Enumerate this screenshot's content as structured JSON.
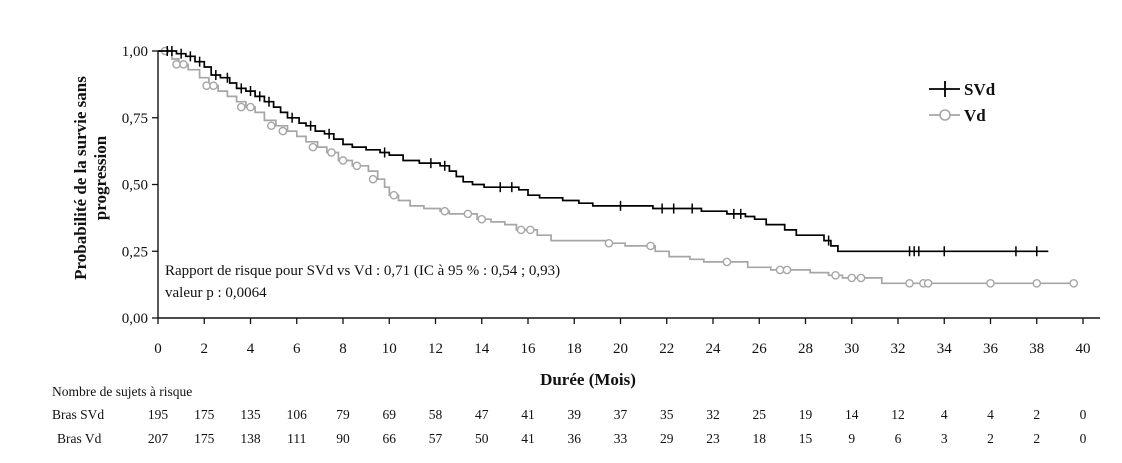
{
  "chart_data": {
    "type": "line",
    "subtype": "kaplan-meier step curve",
    "xlabel": "Durée (Mois)",
    "ylabel": "Probabilité de la survie sans progression",
    "xlim": [
      0,
      40
    ],
    "ylim": [
      0,
      1
    ],
    "x_ticks": [
      0,
      2,
      4,
      6,
      8,
      10,
      12,
      14,
      16,
      18,
      20,
      22,
      24,
      26,
      28,
      30,
      32,
      34,
      36,
      38,
      40
    ],
    "y_ticks": [
      "0,00",
      "0,25",
      "0,50",
      "0,75",
      "1,00"
    ],
    "y_tick_values": [
      0,
      0.25,
      0.5,
      0.75,
      1.0
    ],
    "grid": false,
    "legend_position": "top-right",
    "colors": {
      "SVd": "#000000",
      "Vd": "#a6a6a6"
    },
    "series": [
      {
        "name": "SVd",
        "marker": "plus",
        "points": [
          [
            0,
            1.0
          ],
          [
            0.8,
            0.99
          ],
          [
            1.2,
            0.98
          ],
          [
            1.6,
            0.96
          ],
          [
            2.0,
            0.94
          ],
          [
            2.3,
            0.91
          ],
          [
            2.7,
            0.9
          ],
          [
            3.1,
            0.88
          ],
          [
            3.4,
            0.86
          ],
          [
            3.8,
            0.85
          ],
          [
            4.2,
            0.83
          ],
          [
            4.6,
            0.81
          ],
          [
            5.0,
            0.79
          ],
          [
            5.3,
            0.77
          ],
          [
            5.6,
            0.75
          ],
          [
            6.1,
            0.73
          ],
          [
            6.4,
            0.72
          ],
          [
            6.8,
            0.7
          ],
          [
            7.2,
            0.69
          ],
          [
            7.6,
            0.67
          ],
          [
            8.0,
            0.65
          ],
          [
            8.4,
            0.64
          ],
          [
            9.0,
            0.63
          ],
          [
            9.6,
            0.62
          ],
          [
            10.0,
            0.61
          ],
          [
            10.6,
            0.59
          ],
          [
            11.3,
            0.58
          ],
          [
            12.2,
            0.57
          ],
          [
            12.6,
            0.55
          ],
          [
            12.9,
            0.53
          ],
          [
            13.2,
            0.51
          ],
          [
            13.6,
            0.5
          ],
          [
            14.1,
            0.49
          ],
          [
            15.6,
            0.48
          ],
          [
            16.0,
            0.46
          ],
          [
            16.5,
            0.45
          ],
          [
            17.5,
            0.44
          ],
          [
            18.2,
            0.43
          ],
          [
            18.8,
            0.42
          ],
          [
            21.4,
            0.41
          ],
          [
            23.5,
            0.4
          ],
          [
            24.6,
            0.39
          ],
          [
            25.4,
            0.38
          ],
          [
            25.8,
            0.37
          ],
          [
            26.3,
            0.35
          ],
          [
            27.1,
            0.33
          ],
          [
            27.6,
            0.31
          ],
          [
            28.8,
            0.29
          ],
          [
            29.1,
            0.27
          ],
          [
            29.4,
            0.25
          ],
          [
            38.5,
            0.25
          ]
        ],
        "censors": [
          [
            0.4,
            1.0
          ],
          [
            0.6,
            1.0
          ],
          [
            1.0,
            0.99
          ],
          [
            1.4,
            0.98
          ],
          [
            1.8,
            0.96
          ],
          [
            2.5,
            0.91
          ],
          [
            3.0,
            0.9
          ],
          [
            3.6,
            0.86
          ],
          [
            4.0,
            0.85
          ],
          [
            4.4,
            0.83
          ],
          [
            4.8,
            0.81
          ],
          [
            5.8,
            0.75
          ],
          [
            6.6,
            0.72
          ],
          [
            7.4,
            0.69
          ],
          [
            9.8,
            0.62
          ],
          [
            11.8,
            0.58
          ],
          [
            12.4,
            0.57
          ],
          [
            14.8,
            0.49
          ],
          [
            15.3,
            0.49
          ],
          [
            20.0,
            0.42
          ],
          [
            21.8,
            0.41
          ],
          [
            22.3,
            0.41
          ],
          [
            23.1,
            0.41
          ],
          [
            24.9,
            0.39
          ],
          [
            25.2,
            0.39
          ],
          [
            29.0,
            0.29
          ],
          [
            32.5,
            0.25
          ],
          [
            32.7,
            0.25
          ],
          [
            32.9,
            0.25
          ],
          [
            34.0,
            0.25
          ],
          [
            37.1,
            0.25
          ],
          [
            38.0,
            0.25
          ]
        ]
      },
      {
        "name": "Vd",
        "marker": "circle",
        "points": [
          [
            0,
            1.0
          ],
          [
            0.6,
            0.97
          ],
          [
            0.9,
            0.95
          ],
          [
            1.3,
            0.93
          ],
          [
            1.8,
            0.9
          ],
          [
            2.2,
            0.87
          ],
          [
            2.6,
            0.85
          ],
          [
            3.0,
            0.83
          ],
          [
            3.4,
            0.81
          ],
          [
            3.8,
            0.79
          ],
          [
            4.2,
            0.77
          ],
          [
            4.6,
            0.74
          ],
          [
            5.1,
            0.72
          ],
          [
            5.6,
            0.7
          ],
          [
            6.0,
            0.68
          ],
          [
            6.4,
            0.66
          ],
          [
            6.9,
            0.64
          ],
          [
            7.3,
            0.62
          ],
          [
            7.8,
            0.59
          ],
          [
            8.4,
            0.57
          ],
          [
            9.1,
            0.55
          ],
          [
            9.5,
            0.52
          ],
          [
            9.8,
            0.49
          ],
          [
            10.0,
            0.46
          ],
          [
            10.4,
            0.44
          ],
          [
            10.9,
            0.42
          ],
          [
            11.5,
            0.41
          ],
          [
            12.2,
            0.4
          ],
          [
            12.6,
            0.39
          ],
          [
            13.8,
            0.37
          ],
          [
            14.4,
            0.36
          ],
          [
            15.0,
            0.35
          ],
          [
            15.5,
            0.33
          ],
          [
            16.4,
            0.31
          ],
          [
            17.0,
            0.29
          ],
          [
            19.5,
            0.28
          ],
          [
            20.2,
            0.27
          ],
          [
            21.5,
            0.25
          ],
          [
            22.1,
            0.23
          ],
          [
            23.0,
            0.22
          ],
          [
            23.6,
            0.21
          ],
          [
            25.5,
            0.19
          ],
          [
            26.5,
            0.18
          ],
          [
            28.2,
            0.17
          ],
          [
            29.0,
            0.16
          ],
          [
            29.6,
            0.15
          ],
          [
            31.3,
            0.13
          ],
          [
            39.6,
            0.13
          ]
        ],
        "censors": [
          [
            0.3,
            1.0
          ],
          [
            0.8,
            0.95
          ],
          [
            1.1,
            0.95
          ],
          [
            2.1,
            0.87
          ],
          [
            2.4,
            0.87
          ],
          [
            3.6,
            0.79
          ],
          [
            4.0,
            0.79
          ],
          [
            4.9,
            0.72
          ],
          [
            5.4,
            0.7
          ],
          [
            6.7,
            0.64
          ],
          [
            7.5,
            0.62
          ],
          [
            8.0,
            0.59
          ],
          [
            8.6,
            0.57
          ],
          [
            9.3,
            0.52
          ],
          [
            10.2,
            0.46
          ],
          [
            12.4,
            0.4
          ],
          [
            13.4,
            0.39
          ],
          [
            14.0,
            0.37
          ],
          [
            15.7,
            0.33
          ],
          [
            16.1,
            0.33
          ],
          [
            19.5,
            0.28
          ],
          [
            21.3,
            0.27
          ],
          [
            24.6,
            0.21
          ],
          [
            26.9,
            0.18
          ],
          [
            27.2,
            0.18
          ],
          [
            29.3,
            0.16
          ],
          [
            30.0,
            0.15
          ],
          [
            30.4,
            0.15
          ],
          [
            32.5,
            0.13
          ],
          [
            33.1,
            0.13
          ],
          [
            33.3,
            0.13
          ],
          [
            36.0,
            0.13
          ],
          [
            38.0,
            0.13
          ],
          [
            39.6,
            0.13
          ]
        ]
      }
    ],
    "annotation": [
      "Rapport de risque pour SVd vs Vd : 0,71 (IC à 95 % : 0,54 ; 0,93)",
      "valeur p : 0,0064"
    ]
  },
  "risk_table": {
    "title": "Nombre de sujets à risque",
    "rows": [
      {
        "label": "Bras SVd",
        "values": [
          "195",
          "175",
          "135",
          "106",
          "79",
          "69",
          "58",
          "47",
          "41",
          "39",
          "37",
          "35",
          "32",
          "25",
          "19",
          "14",
          "12",
          "4",
          "4",
          "2",
          "0"
        ]
      },
      {
        "label": "Bras Vd",
        "values": [
          "207",
          "175",
          "138",
          "111",
          "90",
          "66",
          "57",
          "50",
          "41",
          "36",
          "33",
          "29",
          "23",
          "18",
          "15",
          "9",
          "6",
          "3",
          "2",
          "2",
          "0"
        ]
      }
    ]
  }
}
